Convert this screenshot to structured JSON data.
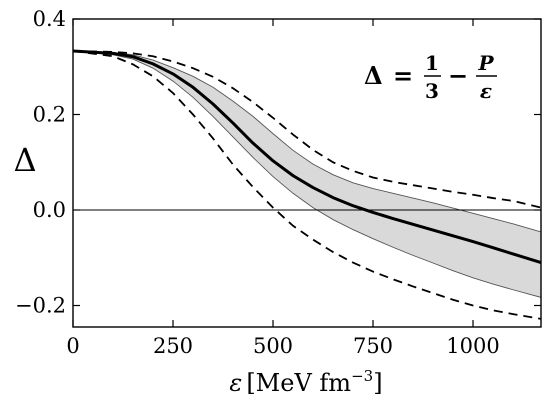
{
  "chart_data": {
    "type": "line",
    "title": "",
    "xlabel": {
      "symbol": "ε",
      "unit": "[MeV fm",
      "exponent": "−3",
      "close": "]"
    },
    "ylabel": "Δ",
    "xlim": [
      0,
      1170
    ],
    "ylim": [
      -0.245,
      0.4
    ],
    "x_ticks": [
      0,
      250,
      500,
      750,
      1000
    ],
    "x_tick_labels": [
      "0",
      "250",
      "500",
      "750",
      "1000"
    ],
    "y_ticks": [
      -0.2,
      0.0,
      0.2,
      0.4
    ],
    "y_tick_labels": [
      "−0.2",
      "0.0",
      "0.2",
      "0.4"
    ],
    "grid": false,
    "legend": null,
    "reference_line": {
      "y": 0.0
    },
    "annotation": {
      "lhs": "Δ",
      "eq": "=",
      "frac1": {
        "num": "1",
        "den": "3"
      },
      "minus": "−",
      "frac2": {
        "num": "P",
        "den": "ε"
      }
    },
    "series": [
      {
        "style": "solid-thick",
        "x": [
          0,
          100,
          150,
          200,
          250,
          300,
          350,
          400,
          450,
          500,
          550,
          600,
          650,
          700,
          750,
          800,
          850,
          900,
          950,
          1000,
          1050,
          1100,
          1170
        ],
        "y": [
          0.333,
          0.328,
          0.321,
          0.306,
          0.285,
          0.257,
          0.222,
          0.182,
          0.14,
          0.103,
          0.072,
          0.047,
          0.026,
          0.009,
          -0.005,
          -0.018,
          -0.03,
          -0.042,
          -0.054,
          -0.066,
          -0.079,
          -0.092,
          -0.11
        ]
      },
      {
        "style": "dashed-upper",
        "x": [
          0,
          100,
          150,
          200,
          250,
          300,
          350,
          400,
          450,
          500,
          550,
          600,
          650,
          700,
          750,
          800,
          850,
          900,
          950,
          1000,
          1050,
          1100,
          1170
        ],
        "y": [
          0.333,
          0.331,
          0.328,
          0.322,
          0.311,
          0.297,
          0.279,
          0.255,
          0.226,
          0.193,
          0.158,
          0.126,
          0.1,
          0.082,
          0.068,
          0.059,
          0.052,
          0.045,
          0.038,
          0.032,
          0.025,
          0.019,
          0.005
        ]
      },
      {
        "style": "dashed-lower",
        "x": [
          0,
          100,
          150,
          200,
          250,
          300,
          350,
          400,
          450,
          500,
          550,
          600,
          650,
          700,
          750,
          800,
          850,
          900,
          950,
          1000,
          1050,
          1100,
          1170
        ],
        "y": [
          0.333,
          0.322,
          0.305,
          0.28,
          0.245,
          0.2,
          0.15,
          0.095,
          0.048,
          0.005,
          -0.033,
          -0.062,
          -0.088,
          -0.11,
          -0.129,
          -0.145,
          -0.16,
          -0.174,
          -0.188,
          -0.2,
          -0.21,
          -0.218,
          -0.228
        ]
      }
    ],
    "band": {
      "x": [
        0,
        100,
        150,
        200,
        250,
        300,
        350,
        400,
        450,
        500,
        550,
        600,
        650,
        700,
        750,
        800,
        850,
        900,
        950,
        1000,
        1050,
        1100,
        1170
      ],
      "upper": [
        0.333,
        0.33,
        0.325,
        0.314,
        0.298,
        0.28,
        0.257,
        0.228,
        0.196,
        0.16,
        0.125,
        0.096,
        0.074,
        0.057,
        0.045,
        0.035,
        0.025,
        0.015,
        0.004,
        -0.007,
        -0.018,
        -0.029,
        -0.046
      ],
      "lower": [
        0.333,
        0.325,
        0.316,
        0.297,
        0.27,
        0.236,
        0.196,
        0.153,
        0.11,
        0.07,
        0.035,
        0.005,
        -0.02,
        -0.041,
        -0.06,
        -0.078,
        -0.095,
        -0.111,
        -0.127,
        -0.142,
        -0.155,
        -0.167,
        -0.183
      ]
    },
    "colors": {
      "band_fill": "#d9d9d9",
      "band_edge": "#555555",
      "line": "#000000"
    }
  }
}
